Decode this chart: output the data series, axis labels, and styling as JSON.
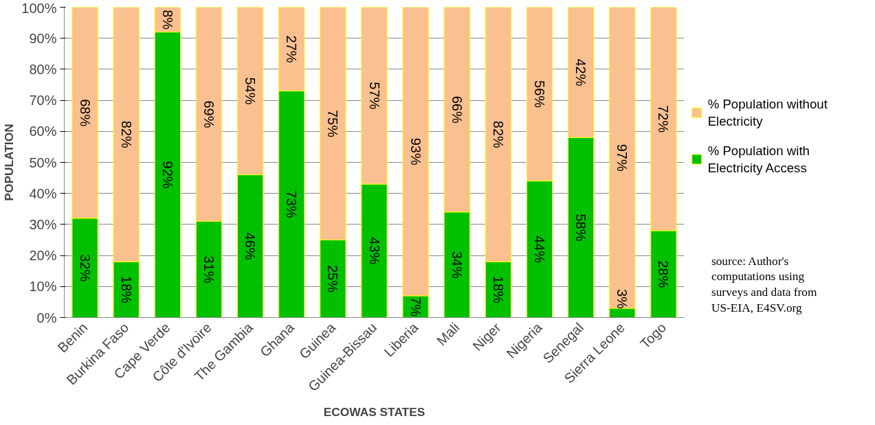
{
  "chart_data": {
    "type": "bar",
    "stacked": true,
    "xlabel": "ECOWAS STATES",
    "ylabel": "POPULATION",
    "categories": [
      "Benin",
      "Burkina Faso",
      "Cape Verde",
      "Côte d'Ivoire",
      "The Gambia",
      "Ghana",
      "Guinea",
      "Guinea-Bissau",
      "Liberia",
      "Mali",
      "Niger",
      "Nigeria",
      "Senegal",
      "Sierra Leone",
      "Togo"
    ],
    "series": [
      {
        "name": "% Population with Electricity Access",
        "color": "#00c000",
        "values": [
          32,
          18,
          92,
          31,
          46,
          73,
          25,
          43,
          7,
          34,
          18,
          44,
          58,
          3,
          28
        ],
        "value_labels": [
          "32%",
          "18%",
          "92%",
          "31%",
          "46%",
          "73%",
          "25%",
          "43%",
          "7%",
          "34%",
          "18%",
          "44%",
          "58%",
          "3%",
          "28%"
        ]
      },
      {
        "name": "% Population without Electricity",
        "color": "#fac090",
        "values": [
          68,
          82,
          8,
          69,
          54,
          27,
          75,
          57,
          93,
          66,
          82,
          56,
          42,
          97,
          72
        ],
        "value_labels": [
          "68%",
          "82%",
          "8%",
          "69%",
          "54%",
          "27%",
          "75%",
          "57%",
          "93%",
          "66%",
          "82%",
          "56%",
          "42%",
          "97%",
          "72%"
        ]
      }
    ],
    "ylim": [
      0,
      100
    ],
    "yticks": [
      {
        "value": 0,
        "label": "0%"
      },
      {
        "value": 10,
        "label": "10%"
      },
      {
        "value": 20,
        "label": "20%"
      },
      {
        "value": 30,
        "label": "30%"
      },
      {
        "value": 40,
        "label": "40%"
      },
      {
        "value": 50,
        "label": "50%"
      },
      {
        "value": 60,
        "label": "60%"
      },
      {
        "value": 70,
        "label": "70%"
      },
      {
        "value": 80,
        "label": "80%"
      },
      {
        "value": 90,
        "label": "90%"
      },
      {
        "value": 100,
        "label": "100%"
      }
    ],
    "grid": "y",
    "legend": "right",
    "annotations": [
      "source: Author's computations using surveys and data from US-EIA, E4SV.org"
    ]
  }
}
